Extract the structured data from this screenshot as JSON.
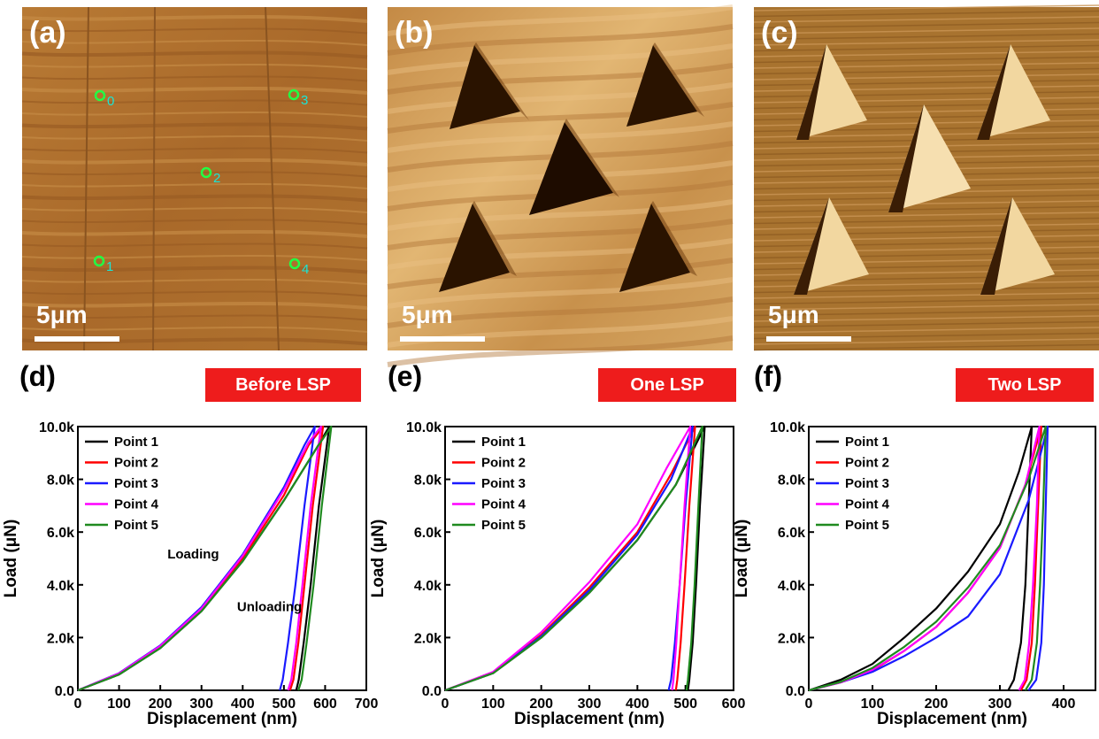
{
  "images": [
    {
      "letter": "(a)",
      "scale": "5μm",
      "points": [
        "0",
        "1",
        "2",
        "3",
        "4"
      ]
    },
    {
      "letter": "(b)",
      "scale": "5μm"
    },
    {
      "letter": "(c)",
      "scale": "5μm"
    }
  ],
  "colors": {
    "Point 1": "#000000",
    "Point 2": "#ff0000",
    "Point 3": "#1a1aff",
    "Point 4": "#ff00ff",
    "Point 5": "#1f8a1f",
    "badge": "#ee1c1c"
  },
  "chart_data": [
    {
      "type": "line",
      "letter": "(d)",
      "badge": "Before LSP",
      "xlabel": "Displacement (nm)",
      "ylabel": "Load (μN)",
      "xlim": [
        0,
        700
      ],
      "ylim": [
        0,
        10000
      ],
      "xticks": [
        "0",
        "100",
        "200",
        "300",
        "400",
        "500",
        "600",
        "700"
      ],
      "yticks": [
        "0.0",
        "2.0k",
        "4.0k",
        "6.0k",
        "8.0k",
        "10.0k"
      ],
      "annotations": [
        "Loading",
        "Unloading"
      ],
      "series": [
        {
          "name": "Point 1",
          "loading": [
            [
              0,
              0
            ],
            [
              100,
              600
            ],
            [
              200,
              1600
            ],
            [
              300,
              3000
            ],
            [
              400,
              4900
            ],
            [
              500,
              7200
            ],
            [
              580,
              9200
            ],
            [
              610,
              10000
            ]
          ],
          "unloading": [
            [
              610,
              10000
            ],
            [
              585,
              7000
            ],
            [
              565,
              4000
            ],
            [
              548,
              1800
            ],
            [
              536,
              400
            ],
            [
              530,
              0
            ]
          ]
        },
        {
          "name": "Point 2",
          "loading": [
            [
              0,
              0
            ],
            [
              100,
              620
            ],
            [
              200,
              1650
            ],
            [
              300,
              3050
            ],
            [
              400,
              5000
            ],
            [
              500,
              7400
            ],
            [
              560,
              9300
            ],
            [
              595,
              10000
            ]
          ],
          "unloading": [
            [
              595,
              10000
            ],
            [
              570,
              7000
            ],
            [
              550,
              4000
            ],
            [
              535,
              1800
            ],
            [
              523,
              400
            ],
            [
              515,
              0
            ]
          ]
        },
        {
          "name": "Point 3",
          "loading": [
            [
              0,
              0
            ],
            [
              100,
              650
            ],
            [
              200,
              1700
            ],
            [
              300,
              3150
            ],
            [
              400,
              5150
            ],
            [
              500,
              7700
            ],
            [
              550,
              9300
            ],
            [
              575,
              10000
            ]
          ],
          "unloading": [
            [
              575,
              10000
            ],
            [
              550,
              7000
            ],
            [
              528,
              4000
            ],
            [
              510,
              1800
            ],
            [
              497,
              400
            ],
            [
              490,
              0
            ]
          ]
        },
        {
          "name": "Point 4",
          "loading": [
            [
              0,
              0
            ],
            [
              100,
              640
            ],
            [
              200,
              1680
            ],
            [
              300,
              3100
            ],
            [
              400,
              5100
            ],
            [
              500,
              7600
            ],
            [
              560,
              9400
            ],
            [
              590,
              10000
            ]
          ],
          "unloading": [
            [
              590,
              10000
            ],
            [
              565,
              7000
            ],
            [
              545,
              4000
            ],
            [
              530,
              1800
            ],
            [
              518,
              400
            ],
            [
              510,
              0
            ]
          ]
        },
        {
          "name": "Point 5",
          "loading": [
            [
              0,
              0
            ],
            [
              100,
              600
            ],
            [
              200,
              1600
            ],
            [
              300,
              3000
            ],
            [
              400,
              4900
            ],
            [
              500,
              7200
            ],
            [
              580,
              9200
            ],
            [
              615,
              10000
            ]
          ],
          "unloading": [
            [
              615,
              10000
            ],
            [
              592,
              7000
            ],
            [
              572,
              4000
            ],
            [
              555,
              1800
            ],
            [
              543,
              400
            ],
            [
              535,
              0
            ]
          ]
        }
      ]
    },
    {
      "type": "line",
      "letter": "(e)",
      "badge": "One LSP",
      "xlabel": "Displacement (nm)",
      "ylabel": "Load (μN)",
      "xlim": [
        0,
        600
      ],
      "ylim": [
        0,
        10000
      ],
      "xticks": [
        "0",
        "100",
        "200",
        "300",
        "400",
        "500",
        "600"
      ],
      "yticks": [
        "0.0",
        "2.0k",
        "4.0k",
        "6.0k",
        "8.0k",
        "10.0k"
      ],
      "series": [
        {
          "name": "Point 1",
          "loading": [
            [
              0,
              0
            ],
            [
              100,
              650
            ],
            [
              200,
              2000
            ],
            [
              300,
              3700
            ],
            [
              400,
              5700
            ],
            [
              480,
              7800
            ],
            [
              540,
              10000
            ]
          ],
          "unloading": [
            [
              540,
              10000
            ],
            [
              530,
              7000
            ],
            [
              522,
              4000
            ],
            [
              515,
              1800
            ],
            [
              508,
              400
            ],
            [
              505,
              0
            ]
          ]
        },
        {
          "name": "Point 2",
          "loading": [
            [
              0,
              0
            ],
            [
              100,
              680
            ],
            [
              200,
              2100
            ],
            [
              300,
              3900
            ],
            [
              400,
              6000
            ],
            [
              470,
              8200
            ],
            [
              520,
              10000
            ]
          ],
          "unloading": [
            [
              520,
              10000
            ],
            [
              508,
              7000
            ],
            [
              498,
              4000
            ],
            [
              490,
              1800
            ],
            [
              483,
              400
            ],
            [
              480,
              0
            ]
          ]
        },
        {
          "name": "Point 3",
          "loading": [
            [
              0,
              0
            ],
            [
              100,
              660
            ],
            [
              200,
              2050
            ],
            [
              300,
              3800
            ],
            [
              400,
              5900
            ],
            [
              470,
              8000
            ],
            [
              515,
              10000
            ]
          ],
          "unloading": [
            [
              515,
              10000
            ],
            [
              500,
              7000
            ],
            [
              488,
              4000
            ],
            [
              478,
              1800
            ],
            [
              470,
              400
            ],
            [
              465,
              0
            ]
          ]
        },
        {
          "name": "Point 4",
          "loading": [
            [
              0,
              0
            ],
            [
              100,
              700
            ],
            [
              200,
              2200
            ],
            [
              300,
              4100
            ],
            [
              400,
              6300
            ],
            [
              460,
              8400
            ],
            [
              510,
              10000
            ]
          ],
          "unloading": [
            [
              510,
              10000
            ],
            [
              498,
              7000
            ],
            [
              488,
              4000
            ],
            [
              481,
              1800
            ],
            [
              475,
              400
            ],
            [
              472,
              0
            ]
          ]
        },
        {
          "name": "Point 5",
          "loading": [
            [
              0,
              0
            ],
            [
              100,
              650
            ],
            [
              200,
              2000
            ],
            [
              300,
              3700
            ],
            [
              400,
              5700
            ],
            [
              480,
              7800
            ],
            [
              535,
              10000
            ]
          ],
          "unloading": [
            [
              535,
              10000
            ],
            [
              527,
              7000
            ],
            [
              519,
              4000
            ],
            [
              512,
              1800
            ],
            [
              505,
              400
            ],
            [
              502,
              0
            ]
          ]
        }
      ]
    },
    {
      "type": "line",
      "letter": "(f)",
      "badge": "Two LSP",
      "xlabel": "Displacement (nm)",
      "ylabel": "Load (μN)",
      "xlim": [
        0,
        450
      ],
      "ylim": [
        0,
        10000
      ],
      "xticks": [
        "0",
        "100",
        "200",
        "300",
        "400"
      ],
      "yticks": [
        "0.0",
        "2.0k",
        "4.0k",
        "6.0k",
        "8.0k",
        "10.0k"
      ],
      "series": [
        {
          "name": "Point 1",
          "loading": [
            [
              0,
              0
            ],
            [
              50,
              400
            ],
            [
              100,
              1000
            ],
            [
              150,
              2000
            ],
            [
              200,
              3100
            ],
            [
              250,
              4500
            ],
            [
              300,
              6300
            ],
            [
              330,
              8300
            ],
            [
              350,
              10000
            ]
          ],
          "unloading": [
            [
              350,
              10000
            ],
            [
              345,
              7000
            ],
            [
              340,
              4000
            ],
            [
              333,
              1800
            ],
            [
              322,
              400
            ],
            [
              313,
              0
            ]
          ]
        },
        {
          "name": "Point 2",
          "loading": [
            [
              0,
              0
            ],
            [
              50,
              300
            ],
            [
              100,
              750
            ],
            [
              150,
              1500
            ],
            [
              200,
              2400
            ],
            [
              250,
              3700
            ],
            [
              300,
              5400
            ],
            [
              340,
              7800
            ],
            [
              365,
              10000
            ]
          ],
          "unloading": [
            [
              365,
              10000
            ],
            [
              360,
              7000
            ],
            [
              355,
              4000
            ],
            [
              350,
              1800
            ],
            [
              342,
              400
            ],
            [
              333,
              0
            ]
          ]
        },
        {
          "name": "Point 3",
          "loading": [
            [
              0,
              0
            ],
            [
              50,
              300
            ],
            [
              100,
              700
            ],
            [
              150,
              1300
            ],
            [
              200,
              2000
            ],
            [
              250,
              2800
            ],
            [
              300,
              4400
            ],
            [
              345,
              7200
            ],
            [
              375,
              10000
            ]
          ],
          "unloading": [
            [
              375,
              10000
            ],
            [
              372,
              7000
            ],
            [
              369,
              4000
            ],
            [
              365,
              1800
            ],
            [
              357,
              400
            ],
            [
              345,
              0
            ]
          ]
        },
        {
          "name": "Point 4",
          "loading": [
            [
              0,
              0
            ],
            [
              50,
              300
            ],
            [
              100,
              780
            ],
            [
              150,
              1500
            ],
            [
              200,
              2400
            ],
            [
              250,
              3700
            ],
            [
              300,
              5400
            ],
            [
              340,
              7800
            ],
            [
              362,
              10000
            ]
          ],
          "unloading": [
            [
              362,
              10000
            ],
            [
              358,
              7000
            ],
            [
              352,
              4000
            ],
            [
              346,
              1800
            ],
            [
              339,
              400
            ],
            [
              330,
              0
            ]
          ]
        },
        {
          "name": "Point 5",
          "loading": [
            [
              0,
              0
            ],
            [
              50,
              320
            ],
            [
              100,
              850
            ],
            [
              150,
              1650
            ],
            [
              200,
              2600
            ],
            [
              250,
              3900
            ],
            [
              300,
              5500
            ],
            [
              345,
              8000
            ],
            [
              372,
              10000
            ]
          ],
          "unloading": [
            [
              372,
              10000
            ],
            [
              368,
              7000
            ],
            [
              363,
              4000
            ],
            [
              358,
              1800
            ],
            [
              350,
              400
            ],
            [
              340,
              0
            ]
          ]
        }
      ]
    }
  ]
}
